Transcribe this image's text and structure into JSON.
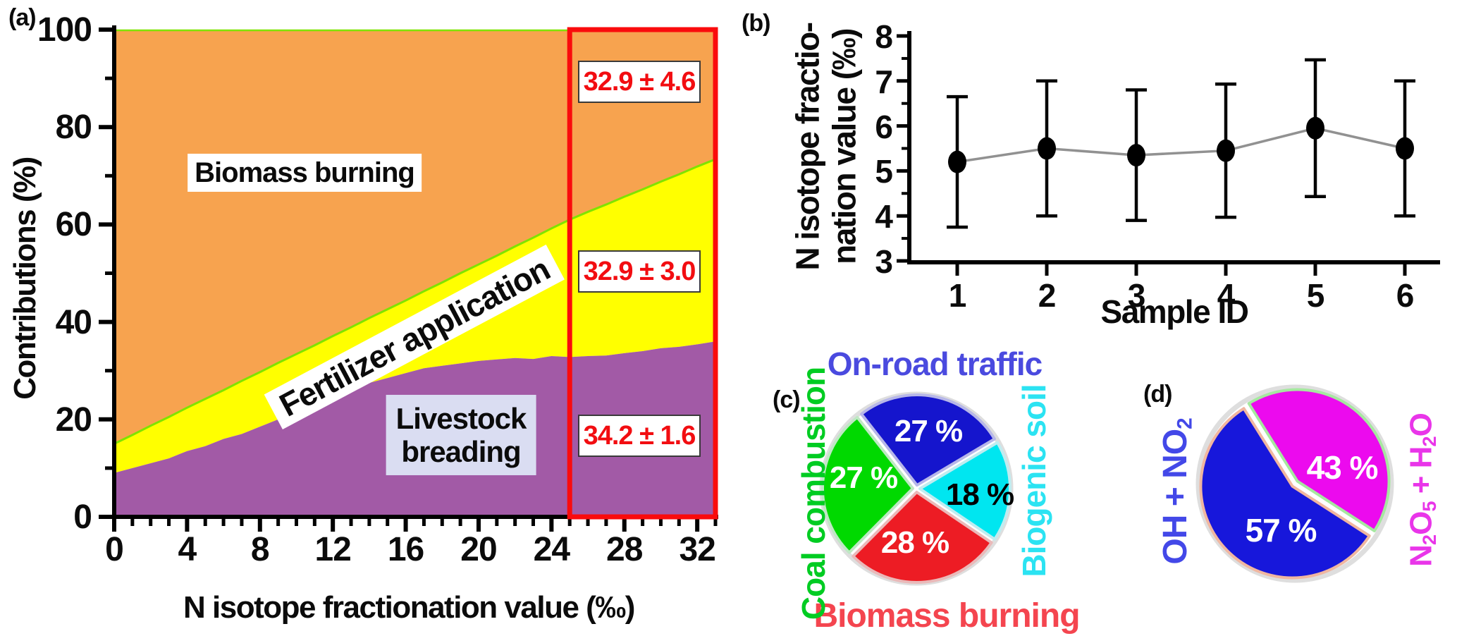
{
  "figure": {
    "background": "#ffffff"
  },
  "chart_data": [
    {
      "id": "a",
      "type": "area",
      "stacked": true,
      "tag": "(a)",
      "xlabel": "N isotope fractionation value (‰)",
      "ylabel": "Contributions (%)",
      "xlim": [
        0,
        33
      ],
      "ylim": [
        0,
        100
      ],
      "x_ticks": [
        "0",
        "4",
        "8",
        "12",
        "16",
        "20",
        "24",
        "28",
        "32"
      ],
      "x_tick_values": [
        0,
        4,
        8,
        12,
        16,
        20,
        24,
        28,
        32
      ],
      "y_ticks": [
        "0",
        "20",
        "40",
        "60",
        "80",
        "100"
      ],
      "y_tick_values": [
        0,
        20,
        40,
        60,
        80,
        100
      ],
      "grid": false,
      "x": [
        0,
        1,
        2,
        3,
        4,
        5,
        6,
        7,
        8,
        9,
        10,
        11,
        12,
        13,
        14,
        15,
        16,
        17,
        18,
        19,
        20,
        21,
        22,
        23,
        24,
        25,
        26,
        27,
        28,
        29,
        30,
        31,
        32,
        33
      ],
      "series": [
        {
          "name": "Livestock breading",
          "fill": "#A25AA6",
          "cumulative_top_pct": [
            9,
            10,
            11,
            12,
            13.5,
            14.5,
            16,
            17,
            18.5,
            20,
            22,
            23.5,
            24.5,
            26,
            27.5,
            28.5,
            29.5,
            30.5,
            31,
            31.5,
            32,
            32.3,
            32.6,
            32.4,
            33,
            32.8,
            33,
            33.1,
            33.6,
            34,
            34.6,
            34.9,
            35.4,
            36
          ]
        },
        {
          "name": "Fertilizer application",
          "fill": "#FFFF00",
          "cumulative_top_pct": [
            15,
            16.8,
            18.7,
            20.5,
            22.4,
            24.2,
            26,
            27.9,
            29.7,
            31.6,
            33.4,
            35.2,
            37.1,
            38.9,
            40.8,
            42.6,
            44.4,
            46.3,
            48.1,
            50,
            51.8,
            53.6,
            55.5,
            57.3,
            59.2,
            61,
            62.6,
            64.1,
            65.7,
            67.2,
            68.8,
            70.3,
            71.9,
            73.4
          ]
        },
        {
          "name": "Biomass burning",
          "fill": "#F7A34F",
          "cumulative_top_pct": [
            100,
            100,
            100,
            100,
            100,
            100,
            100,
            100,
            100,
            100,
            100,
            100,
            100,
            100,
            100,
            100,
            100,
            100,
            100,
            100,
            100,
            100,
            100,
            100,
            100,
            100,
            100,
            100,
            100,
            100,
            100,
            100,
            100,
            100
          ]
        }
      ],
      "boundary_stroke": "#7FE300",
      "area_labels": {
        "biomass": "Biomass burning",
        "fertilizer": "Fertilizer application",
        "livestock": [
          "Livestock",
          "breading"
        ],
        "livestock_bg": "#DADDF2"
      },
      "highlight_box": {
        "x_range": [
          25,
          33
        ],
        "color": "#FA0B0C",
        "text_color": "#F20D11",
        "annotations": [
          "32.9 ± 4.6",
          "32.9 ± 3.0",
          "34.2 ± 1.6"
        ],
        "annotation_y_pct": [
          89.3,
          50.3,
          16.6
        ]
      }
    },
    {
      "id": "b",
      "type": "scatter",
      "tag": "(b)",
      "xlabel": "Sample ID",
      "ylabel": [
        "N isotope fractio-",
        "nation value (‰)"
      ],
      "xlim": [
        0.5,
        6.6
      ],
      "ylim": [
        3,
        8
      ],
      "x_ticks": [
        "1",
        "2",
        "3",
        "4",
        "5",
        "6"
      ],
      "y_ticks": [
        "3",
        "4",
        "5",
        "6",
        "7",
        "8"
      ],
      "y_tick_values": [
        3,
        4,
        5,
        6,
        7,
        8
      ],
      "grid": false,
      "x": [
        1,
        2,
        3,
        4,
        5,
        6
      ],
      "y": [
        5.2,
        5.5,
        5.35,
        5.45,
        5.95,
        5.5
      ],
      "yerr": [
        1.45,
        1.5,
        1.45,
        1.48,
        1.52,
        1.5
      ],
      "marker_color": "#000000",
      "errorbar_color": "#000000",
      "connector_color": "#919191"
    },
    {
      "id": "c",
      "type": "pie",
      "tag": "(c)",
      "start_angle_deg": 128,
      "direction": "clockwise",
      "ring_color": "#dedede",
      "slices": [
        {
          "label": "On-road traffic",
          "pct": 27,
          "value_text": "27 %",
          "color": "#1515CD",
          "edge_color": "#b7b7e8",
          "label_color": "#4A4ADF",
          "value_text_color": "#ffffff"
        },
        {
          "label": "Biogenic soil",
          "pct": 18,
          "value_text": "18 %",
          "color": "#00E6F0",
          "edge_color": "#c0ecf0",
          "label_color": "#2BE3F2",
          "value_text_color": "#000000"
        },
        {
          "label": "Biomass burning",
          "pct": 28,
          "value_text": "28 %",
          "color": "#ED1C24",
          "edge_color": "#eab9b9",
          "label_color": "#F4454F",
          "value_text_color": "#ffffff"
        },
        {
          "label": "Coal combustion",
          "pct": 27,
          "value_text": "27 %",
          "color": "#00D900",
          "edge_color": "#bfe8c4",
          "label_color": "#00CC22",
          "value_text_color": "#ffffff"
        }
      ]
    },
    {
      "id": "d",
      "type": "pie",
      "tag": "(d)",
      "start_angle_deg": 122,
      "direction": "clockwise",
      "ring_color": "#dedede",
      "slices": [
        {
          "label": "N2O5 + H2O",
          "label_parts": [
            "N",
            "2",
            "O",
            "5",
            " + H",
            "2",
            "O"
          ],
          "pct": 43,
          "value_text": "43 %",
          "color": "#EC0AEE",
          "edge_color": "#a6e8a0",
          "label_color": "#E935E9",
          "value_text_color": "#ffffff"
        },
        {
          "label": "OH + NO2",
          "label_parts": [
            "OH + NO",
            "2"
          ],
          "pct": 57,
          "value_text": "57 %",
          "color": "#1717DB",
          "edge_color": "#f0b6a0",
          "label_color": "#4348E8",
          "value_text_color": "#ffffff"
        }
      ]
    }
  ]
}
